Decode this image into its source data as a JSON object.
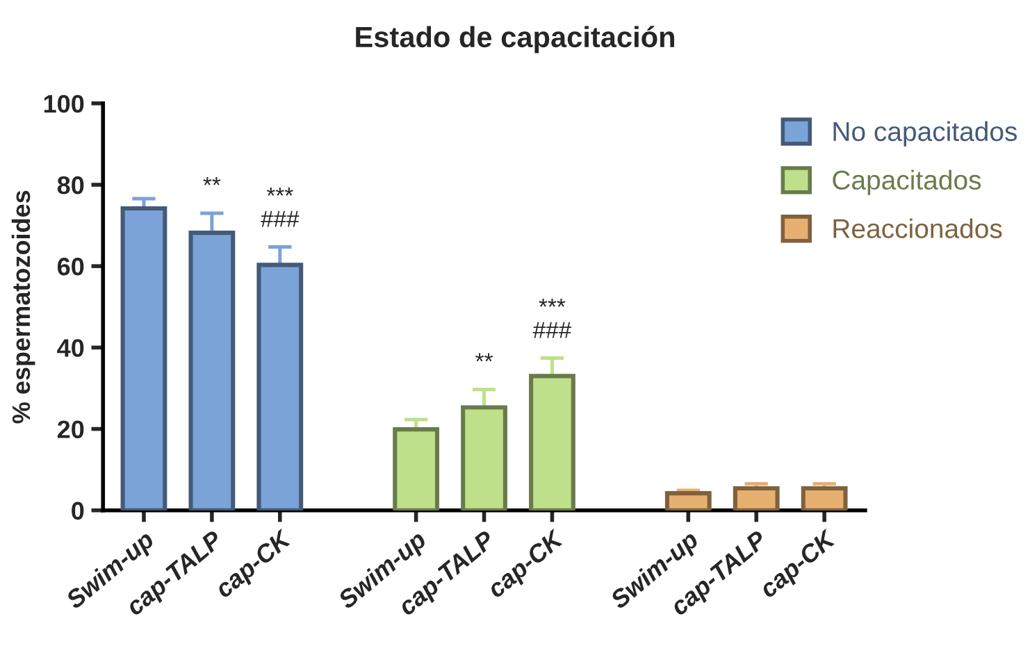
{
  "chart_data": {
    "type": "bar",
    "title": "Estado de capacitación",
    "ylabel": "% espermatozoides",
    "categories": [
      "Swim-up",
      "cap-TALP",
      "cap-CK",
      null,
      "Swim-up",
      "cap-TALP",
      "cap-CK",
      null,
      "Swim-up",
      "cap-TALP",
      "cap-CK"
    ],
    "series": [
      {
        "name": "No capacitados",
        "color": "#7ba3d8",
        "values": [
          74.2,
          68.2,
          60.3,
          null,
          null,
          null,
          null,
          null,
          null,
          null,
          null
        ],
        "errors": [
          [
            74.2,
            76.6
          ],
          [
            68.2,
            73
          ],
          [
            60.3,
            64.7
          ],
          null,
          null,
          null,
          null,
          null,
          null,
          null,
          null
        ],
        "value_labels": [
          null,
          "**",
          "***\n###",
          null,
          null,
          null,
          null,
          null,
          null,
          null,
          null
        ]
      },
      {
        "name": "Capacitados",
        "color": "#bfe08a",
        "values": [
          null,
          null,
          null,
          null,
          19.9,
          25.3,
          33,
          null,
          null,
          null,
          null
        ],
        "errors": [
          null,
          null,
          null,
          null,
          [
            19.9,
            22.3
          ],
          [
            25.3,
            29.7
          ],
          [
            33,
            37.4
          ],
          null,
          null,
          null,
          null
        ],
        "value_labels": [
          null,
          null,
          null,
          null,
          null,
          "**",
          "***\n###",
          null,
          null,
          null,
          null
        ]
      },
      {
        "name": "Reaccionados",
        "color": "#e6b070",
        "values": [
          null,
          null,
          null,
          null,
          null,
          null,
          null,
          null,
          4.2,
          5.4,
          5.4
        ],
        "errors": [
          null,
          null,
          null,
          null,
          null,
          null,
          null,
          null,
          [
            4.2,
            4.9
          ],
          [
            5.4,
            6.5
          ],
          [
            5.4,
            6.5
          ]
        ]
      }
    ],
    "ylim": [
      0,
      100
    ],
    "yticks": [
      0,
      20,
      40,
      60,
      80,
      100
    ],
    "grid": false,
    "legend": "top right"
  }
}
